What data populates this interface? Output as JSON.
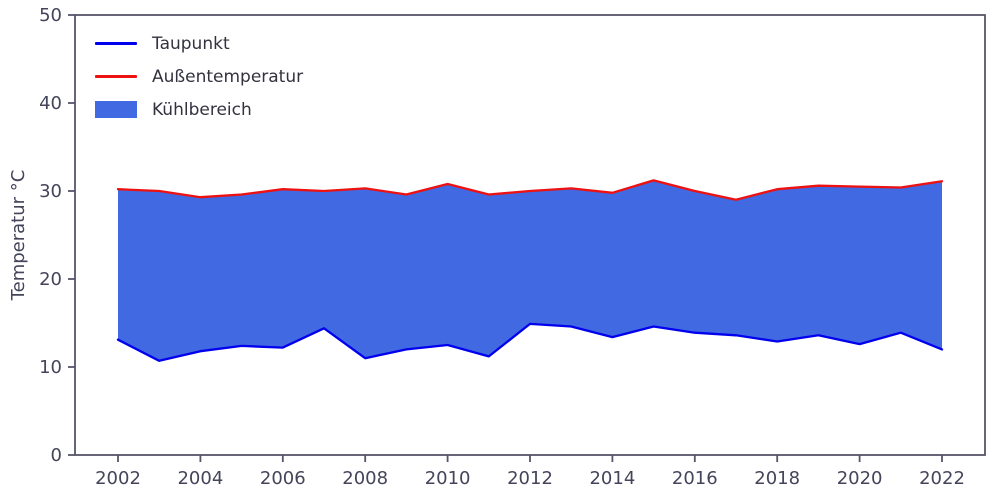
{
  "chart_data": {
    "type": "area",
    "title": "",
    "xlabel": "",
    "ylabel": "Temperatur °C",
    "ylim": [
      0,
      50
    ],
    "yticks": [
      0,
      10,
      20,
      30,
      40,
      50
    ],
    "xticks": [
      2002,
      2004,
      2006,
      2008,
      2010,
      2012,
      2014,
      2016,
      2018,
      2020,
      2022
    ],
    "grid": false,
    "legend_position": "upper-left",
    "axis_color": "#55556a",
    "tick_label_color": "#44445a",
    "x": [
      2002,
      2003,
      2004,
      2005,
      2006,
      2007,
      2008,
      2009,
      2010,
      2011,
      2012,
      2013,
      2014,
      2015,
      2016,
      2017,
      2018,
      2019,
      2020,
      2021,
      2022
    ],
    "series": [
      {
        "name": "Taupunkt",
        "color": "#0000ee",
        "values": [
          13.1,
          10.7,
          11.8,
          12.4,
          12.2,
          14.4,
          11.0,
          12.0,
          12.5,
          11.2,
          14.9,
          14.6,
          13.4,
          14.6,
          13.9,
          13.6,
          12.9,
          13.6,
          12.6,
          13.9,
          12.0
        ]
      },
      {
        "name": "Außentemperatur",
        "color": "#ee1111",
        "values": [
          30.2,
          30.0,
          29.3,
          29.6,
          30.2,
          30.0,
          30.3,
          29.6,
          30.8,
          29.6,
          30.0,
          30.3,
          29.8,
          31.2,
          30.0,
          29.0,
          30.2,
          30.6,
          30.5,
          30.4,
          31.1
        ]
      }
    ],
    "fill": {
      "name": "Kühlbereich",
      "color": "#4169e1",
      "between": [
        "Taupunkt",
        "Außentemperatur"
      ]
    }
  },
  "legend": {
    "items": [
      {
        "label": "Taupunkt"
      },
      {
        "label": "Außentemperatur"
      },
      {
        "label": "Kühlbereich"
      }
    ]
  }
}
